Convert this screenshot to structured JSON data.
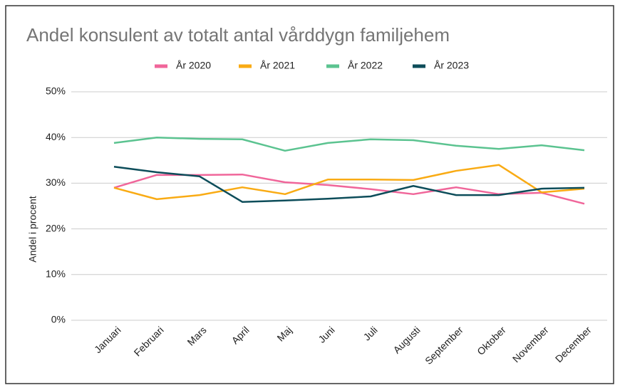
{
  "chart_data": {
    "type": "line",
    "title": "Andel konsulent av totalt antal vårddygn familjehem",
    "y_label": "Andel i procent",
    "categories": [
      "Januari",
      "Februari",
      "Mars",
      "April",
      "Maj",
      "Juni",
      "Juli",
      "Augusti",
      "September",
      "Oktober",
      "November",
      "December"
    ],
    "series": [
      {
        "name": "År 2020",
        "color": "#f0669a",
        "values": [
          29.0,
          31.8,
          31.8,
          31.9,
          30.2,
          29.6,
          28.7,
          27.6,
          29.1,
          27.6,
          27.9,
          25.5
        ]
      },
      {
        "name": "År 2021",
        "color": "#f9ab14",
        "values": [
          29.0,
          26.5,
          27.4,
          29.1,
          27.6,
          30.8,
          30.8,
          30.7,
          32.7,
          34.0,
          28.0,
          28.8
        ]
      },
      {
        "name": "År 2022",
        "color": "#5bc390",
        "values": [
          38.8,
          40.0,
          39.7,
          39.6,
          37.1,
          38.8,
          39.6,
          39.4,
          38.2,
          37.5,
          38.3,
          37.2
        ]
      },
      {
        "name": "År 2023",
        "color": "#0d4d5a",
        "values": [
          33.6,
          32.4,
          31.5,
          25.9,
          26.2,
          26.6,
          27.1,
          29.4,
          27.4,
          27.4,
          28.8,
          29.0
        ]
      }
    ],
    "ylim": [
      0,
      50
    ],
    "yticks": [
      {
        "value": 0,
        "label": "0%"
      },
      {
        "value": 10,
        "label": "10%"
      },
      {
        "value": 20,
        "label": "20%"
      },
      {
        "value": 30,
        "label": "30%"
      },
      {
        "value": 40,
        "label": "40%"
      },
      {
        "value": 50,
        "label": "50%"
      }
    ],
    "grid": true,
    "legend": "top"
  }
}
